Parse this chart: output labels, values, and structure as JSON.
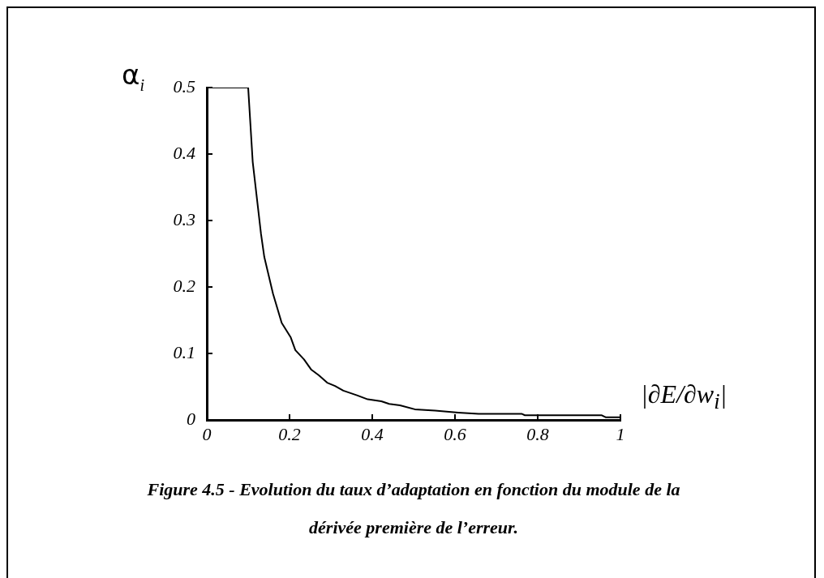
{
  "chart_data": {
    "type": "line",
    "xlabel": "|∂E/∂w$_{i}$|",
    "ylabel": "α$_{i}$",
    "annotations": [
      "Figure 4.5 - Evolution du taux d’adaptation en fonction du module de la dérivée première de l’erreur."
    ],
    "xlim": [
      0,
      1
    ],
    "xticks": [
      0,
      0.2,
      0.4,
      0.6,
      0.8,
      1
    ],
    "ylim": [
      0,
      0.5
    ],
    "yticks": [
      0,
      0.1,
      0.2,
      0.3,
      0.4,
      0.5
    ],
    "grid": false,
    "legend": false,
    "marker": "none",
    "line_style": "solid",
    "series": [
      {
        "color": "#000000",
        "x": [
          0,
          0.1,
          0.111,
          0.131,
          0.139,
          0.16,
          0.181,
          0.203,
          0.214,
          0.235,
          0.252,
          0.271,
          0.291,
          0.31,
          0.33,
          0.363,
          0.389,
          0.422,
          0.441,
          0.467,
          0.503,
          0.552,
          0.608,
          0.657,
          0.762,
          0.769,
          0.955,
          0.964,
          1
        ],
        "values": [
          0.5,
          0.5,
          0.388,
          0.28,
          0.245,
          0.19,
          0.146,
          0.124,
          0.105,
          0.091,
          0.076,
          0.067,
          0.056,
          0.051,
          0.044,
          0.037,
          0.031,
          0.028,
          0.024,
          0.022,
          0.016,
          0.014,
          0.011,
          0.009,
          0.009,
          0.007,
          0.007,
          0.004,
          0.004
        ]
      }
    ]
  }
}
